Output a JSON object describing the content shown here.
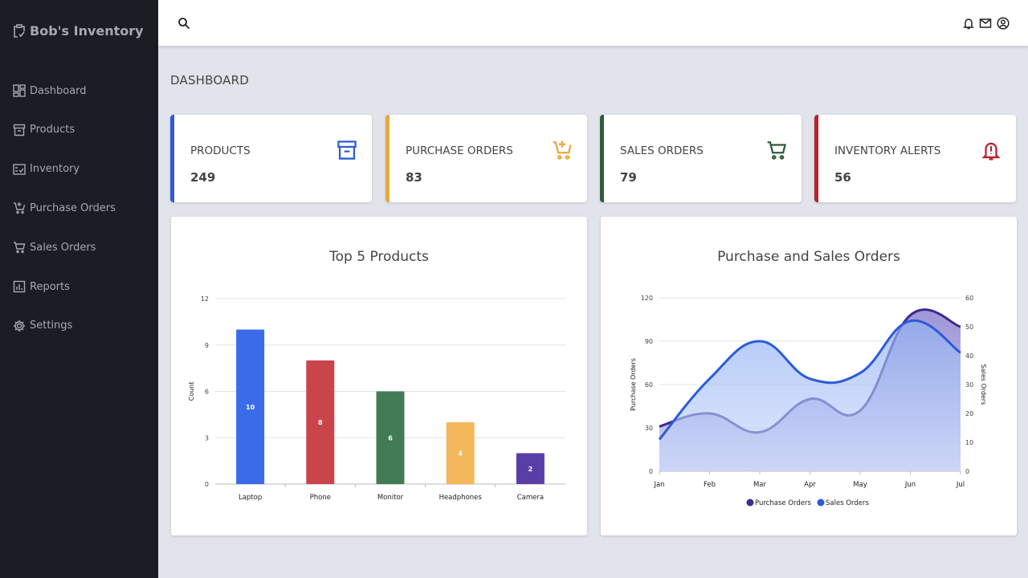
{
  "app": {
    "title": "Bob's Inventory"
  },
  "sidebar": {
    "items": [
      {
        "label": "Dashboard",
        "icon": "dashboard-icon"
      },
      {
        "label": "Products",
        "icon": "archive-icon"
      },
      {
        "label": "Inventory",
        "icon": "checklist-icon"
      },
      {
        "label": "Purchase Orders",
        "icon": "cart-plus-icon"
      },
      {
        "label": "Sales Orders",
        "icon": "cart-icon"
      },
      {
        "label": "Reports",
        "icon": "report-icon"
      },
      {
        "label": "Settings",
        "icon": "gear-icon"
      }
    ]
  },
  "header": {
    "icons": [
      "search-icon",
      "bell-icon",
      "mail-icon",
      "user-icon"
    ]
  },
  "page": {
    "title": "DASHBOARD"
  },
  "cards": [
    {
      "label": "PRODUCTS",
      "value": "249",
      "color": "#2f5bd8",
      "icon": "archive-icon"
    },
    {
      "label": "PURCHASE ORDERS",
      "value": "83",
      "color": "#e8a93f",
      "icon": "cart-plus-icon"
    },
    {
      "label": "SALES ORDERS",
      "value": "79",
      "color": "#2e5d3a",
      "icon": "cart-icon"
    },
    {
      "label": "INVENTORY ALERTS",
      "value": "56",
      "color": "#b5232f",
      "icon": "bell-alert-icon"
    }
  ],
  "chart_data": [
    {
      "type": "bar",
      "title": "Top 5 Products",
      "xlabel": "",
      "ylabel": "Count",
      "ylim": [
        0,
        12
      ],
      "yticks": [
        0,
        3,
        6,
        9,
        12
      ],
      "grid": true,
      "categories": [
        "Laptop",
        "Phone",
        "Monitor",
        "Headphones",
        "Camera"
      ],
      "values": [
        10,
        8,
        6,
        4,
        2
      ],
      "colors": [
        "#3b6be8",
        "#c9444b",
        "#437b56",
        "#f2b85b",
        "#5a3ea8"
      ],
      "data_labels": true
    },
    {
      "type": "area",
      "title": "Purchase and Sales Orders",
      "ylabel": "Purchase Orders",
      "y2label": "Sales Orders",
      "ylim": [
        0,
        120
      ],
      "yticks": [
        0,
        30,
        60,
        90,
        120
      ],
      "y2lim": [
        0,
        60
      ],
      "y2ticks": [
        0,
        10,
        20,
        30,
        40,
        50,
        60
      ],
      "grid": true,
      "legend": "bottom",
      "categories": [
        "Jan",
        "Feb",
        "Mar",
        "Apr",
        "May",
        "Jun",
        "Jul"
      ],
      "series": [
        {
          "name": "Purchase Orders",
          "axis": "left",
          "color": "#3d2a8f",
          "values": [
            31,
            40,
            27,
            50,
            42,
            108,
            100
          ]
        },
        {
          "name": "Sales Orders",
          "axis": "right",
          "color": "#2a5bdc",
          "values": [
            11,
            32,
            45,
            32,
            34,
            52,
            41
          ]
        }
      ]
    }
  ]
}
